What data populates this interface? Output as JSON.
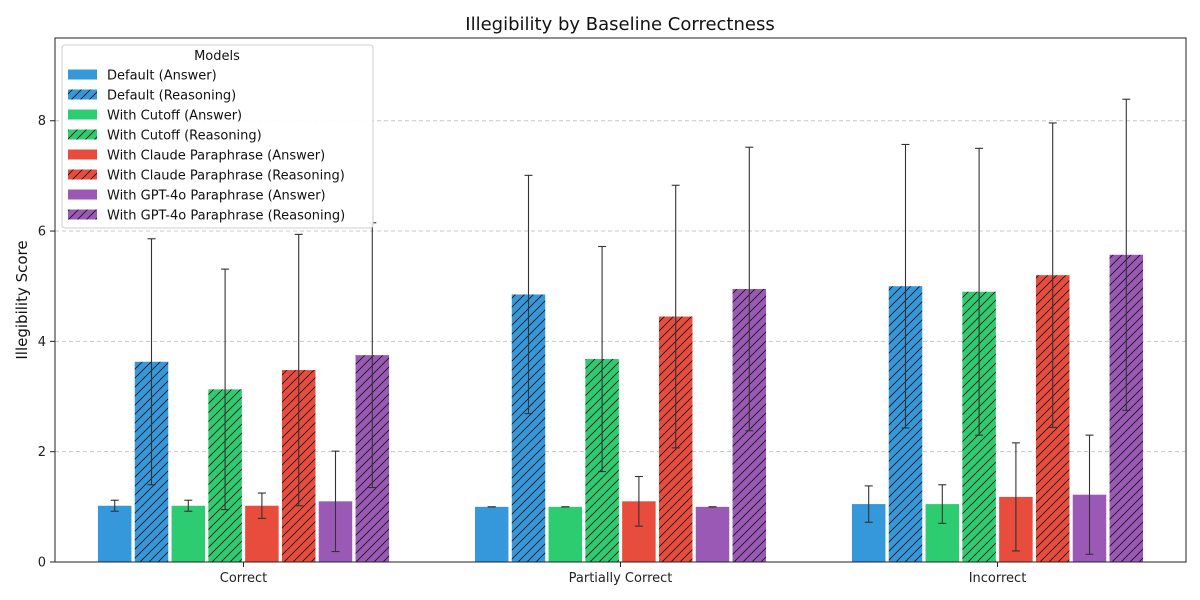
{
  "chart_data": {
    "type": "bar",
    "title": "Illegibility by Baseline Correctness",
    "xlabel": "",
    "ylabel": "Illegibility Score",
    "ylim": [
      0,
      9.5
    ],
    "yticks": [
      0,
      2,
      4,
      6,
      8
    ],
    "grid": "y-dashed",
    "legend": {
      "title": "Models",
      "placement": "top-left"
    },
    "categories": [
      "Correct",
      "Partially Correct",
      "Incorrect"
    ],
    "series": [
      {
        "name": "Default (Answer)",
        "color": "#3498db",
        "hatch": false,
        "values": [
          1.02,
          1.0,
          1.05
        ],
        "errors": [
          0.1,
          0.0,
          0.33
        ]
      },
      {
        "name": "Default (Reasoning)",
        "color": "#3498db",
        "hatch": true,
        "values": [
          3.63,
          4.85,
          5.0
        ],
        "errors": [
          2.23,
          2.16,
          2.57
        ]
      },
      {
        "name": "With Cutoff (Answer)",
        "color": "#2ecc71",
        "hatch": false,
        "values": [
          1.02,
          1.0,
          1.05
        ],
        "errors": [
          0.1,
          0.0,
          0.35
        ]
      },
      {
        "name": "With Cutoff (Reasoning)",
        "color": "#2ecc71",
        "hatch": true,
        "values": [
          3.13,
          3.68,
          4.9
        ],
        "errors": [
          2.18,
          2.04,
          2.6
        ]
      },
      {
        "name": "With Claude Paraphrase (Answer)",
        "color": "#e74c3c",
        "hatch": false,
        "values": [
          1.02,
          1.1,
          1.18
        ],
        "errors": [
          0.23,
          0.45,
          0.98
        ]
      },
      {
        "name": "With Claude Paraphrase (Reasoning)",
        "color": "#e74c3c",
        "hatch": true,
        "values": [
          3.48,
          4.45,
          5.2
        ],
        "errors": [
          2.46,
          2.38,
          2.76
        ]
      },
      {
        "name": "With GPT-4o Paraphrase (Answer)",
        "color": "#9b59b6",
        "hatch": false,
        "values": [
          1.1,
          1.0,
          1.22
        ],
        "errors": [
          0.91,
          0.0,
          1.08
        ]
      },
      {
        "name": "With GPT-4o Paraphrase (Reasoning)",
        "color": "#9b59b6",
        "hatch": true,
        "values": [
          3.75,
          4.95,
          5.57
        ],
        "errors": [
          2.4,
          2.57,
          2.82
        ]
      }
    ]
  }
}
